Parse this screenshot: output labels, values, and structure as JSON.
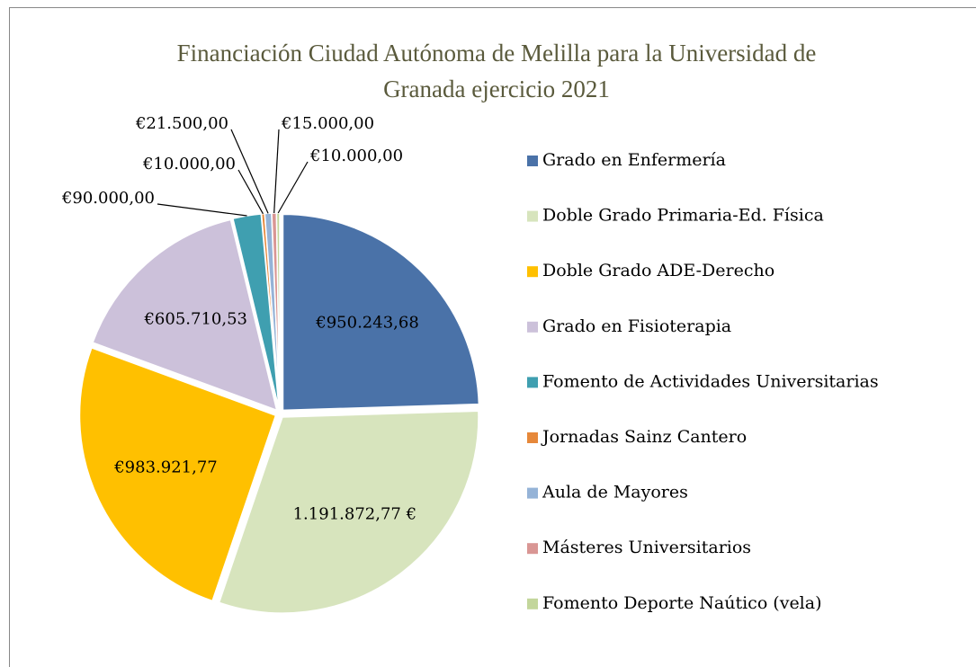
{
  "chart_data": {
    "type": "pie",
    "title": "Financiación Ciudad Autónoma de Melilla para la Universidad de Granada ejercicio 2021",
    "categories": [
      "Grado en Enfermería",
      "Doble Grado Primaria-Ed. Física",
      "Doble Grado ADE-Derecho",
      "Grado en Fisioterapia",
      "Fomento de Actividades Universitarias",
      "Jornadas Sainz Cantero",
      "Aula de Mayores",
      "Másteres Universitarios",
      "Fomento Deporte Naútico (vela)"
    ],
    "values": [
      950243.68,
      1191872.77,
      983921.77,
      605710.53,
      90000,
      10000,
      21500,
      15000,
      10000
    ],
    "value_labels": [
      "€950.243,68",
      "1.191.872,77 €",
      "€983.921,77",
      "€605.710,53",
      "€90.000,00",
      "€10.000,00",
      "€21.500,00",
      "€15.000,00",
      "€10.000,00"
    ],
    "colors": [
      "#4a72a8",
      "#d7e4bd",
      "#ffc000",
      "#ccc1da",
      "#3f9fb0",
      "#e6883a",
      "#95b3d7",
      "#d99694",
      "#c3d69b"
    ],
    "legend": "right"
  }
}
